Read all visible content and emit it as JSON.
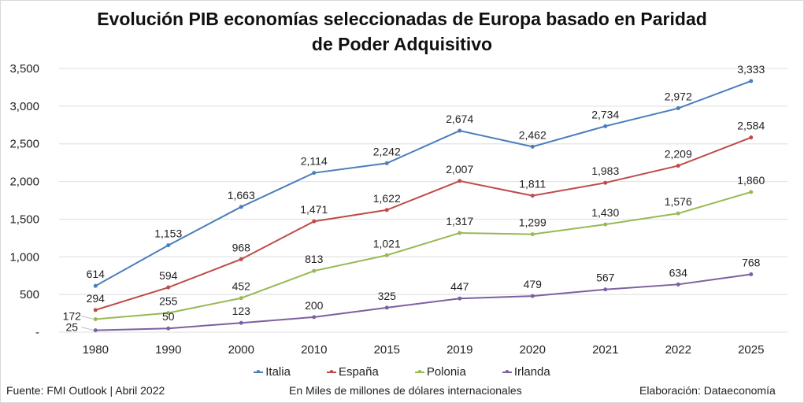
{
  "chart_data": {
    "type": "line",
    "title": "Evolución PIB economías seleccionadas de Europa basado en Paridad de Poder Adquisitivo",
    "title_lines": [
      "Evolución PIB economías seleccionadas de Europa basado en Paridad",
      "de Poder Adquisitivo"
    ],
    "categories": [
      "1980",
      "1990",
      "2000",
      "2010",
      "2015",
      "2019",
      "2020",
      "2021",
      "2022",
      "2025"
    ],
    "xlabel": "",
    "ylabel": "",
    "ylim": [
      0,
      3500
    ],
    "yticks": [
      0,
      500,
      1000,
      1500,
      2000,
      2500,
      3000,
      3500
    ],
    "ytick_labels": [
      "-",
      "500",
      "1,000",
      "1,500",
      "2,000",
      "2,500",
      "3,000",
      "3,500"
    ],
    "grid": true,
    "legend_position": "bottom",
    "series": [
      {
        "name": "Italia",
        "color": "#4a7ebb",
        "values": [
          614,
          1153,
          1663,
          2114,
          2242,
          2674,
          2462,
          2734,
          2972,
          3333
        ],
        "labels": [
          "614",
          "1,153",
          "1,663",
          "2,114",
          "2,242",
          "2,674",
          "2,462",
          "2,734",
          "2,972",
          "3,333"
        ]
      },
      {
        "name": "España",
        "color": "#be4b48",
        "values": [
          294,
          594,
          968,
          1471,
          1622,
          2007,
          1811,
          1983,
          2209,
          2584
        ],
        "labels": [
          "294",
          "594",
          "968",
          "1,471",
          "1,622",
          "2,007",
          "1,811",
          "1,983",
          "2,209",
          "2,584"
        ]
      },
      {
        "name": "Polonia",
        "color": "#98b954",
        "values": [
          172,
          255,
          452,
          813,
          1021,
          1317,
          1299,
          1430,
          1576,
          1860
        ],
        "labels": [
          "172",
          "255",
          "452",
          "813",
          "1,021",
          "1,317",
          "1,299",
          "1,430",
          "1,576",
          "1,860"
        ]
      },
      {
        "name": "Irlanda",
        "color": "#7d60a0",
        "values": [
          25,
          50,
          123,
          200,
          325,
          447,
          479,
          567,
          634,
          768
        ],
        "labels": [
          "25",
          "50",
          "123",
          "200",
          "325",
          "447",
          "479",
          "567",
          "634",
          "768"
        ]
      }
    ]
  },
  "footer": {
    "source": "Fuente: FMI Outlook | Abril 2022",
    "units": "En Miles de millones de dólares internacionales",
    "credit": "Elaboración: Dataeconomía"
  }
}
